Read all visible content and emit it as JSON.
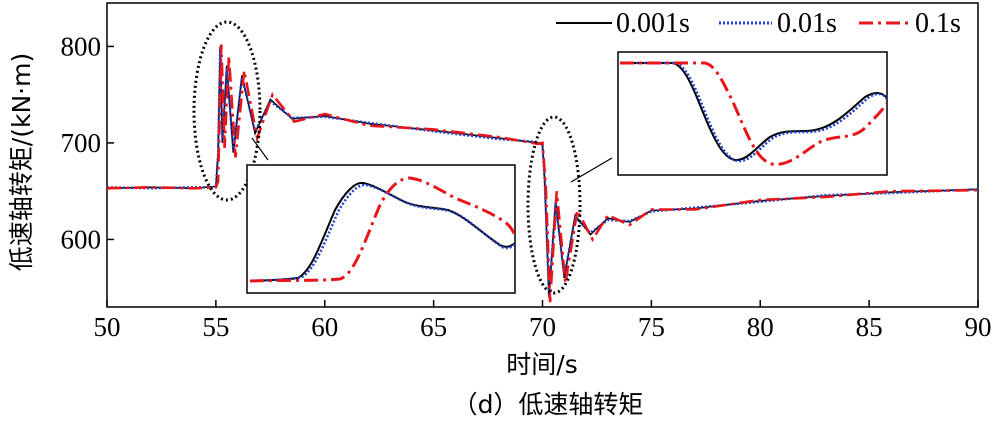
{
  "chart_data": {
    "type": "line",
    "title": "",
    "caption": "（d）低速轴转矩",
    "xlabel": "时间/s",
    "ylabel": "低速轴转矩/(kN·m)",
    "xlim": [
      50,
      90
    ],
    "ylim": [
      530,
      845
    ],
    "xticks": [
      50,
      55,
      60,
      65,
      70,
      75,
      80,
      85,
      90
    ],
    "yticks": [
      600,
      700,
      800
    ],
    "grid": false,
    "legend_position": "top-right",
    "series": [
      {
        "name": "0.001s",
        "color": "#000000",
        "style": "solid",
        "x": [
          50,
          52,
          54,
          55,
          55.1,
          55.2,
          55.3,
          55.5,
          55.8,
          56.2,
          56.8,
          57.5,
          58.5,
          60,
          62,
          65,
          68,
          69.8,
          70,
          70.1,
          70.3,
          70.6,
          71,
          71.5,
          72.2,
          73,
          74,
          75,
          77,
          80,
          83,
          86,
          90
        ],
        "y": [
          653,
          654,
          653,
          655,
          690,
          800,
          700,
          780,
          690,
          770,
          710,
          745,
          725,
          728,
          720,
          713,
          705,
          700,
          698,
          660,
          540,
          640,
          560,
          625,
          605,
          622,
          618,
          630,
          632,
          640,
          645,
          649,
          652
        ]
      },
      {
        "name": "0.01s",
        "color": "#1f3fcc",
        "style": "dotted",
        "x": [
          50,
          52,
          54,
          55,
          55.1,
          55.2,
          55.3,
          55.5,
          55.8,
          56.2,
          56.8,
          57.5,
          58.5,
          60,
          62,
          65,
          68,
          69.8,
          70,
          70.1,
          70.3,
          70.6,
          71,
          71.5,
          72.2,
          73,
          74,
          75,
          77,
          80,
          83,
          86,
          90
        ],
        "y": [
          654,
          653,
          654,
          654,
          688,
          798,
          702,
          778,
          692,
          768,
          712,
          743,
          726,
          727,
          721,
          712,
          704,
          701,
          697,
          662,
          542,
          638,
          562,
          623,
          607,
          620,
          619,
          629,
          633,
          639,
          646,
          648,
          652
        ]
      },
      {
        "name": "0.1s",
        "color": "#e8161b",
        "style": "dashdot",
        "x": [
          50,
          52,
          54,
          55,
          55.1,
          55.25,
          55.4,
          55.6,
          55.9,
          56.3,
          56.9,
          57.6,
          58.6,
          60,
          62,
          65,
          68,
          69.8,
          70,
          70.15,
          70.35,
          70.65,
          71.05,
          71.6,
          72.3,
          73,
          74,
          75,
          77,
          80,
          83,
          86,
          90
        ],
        "y": [
          653,
          654,
          653,
          654,
          660,
          802,
          695,
          790,
          685,
          775,
          705,
          750,
          722,
          730,
          718,
          714,
          706,
          699,
          700,
          655,
          535,
          650,
          555,
          630,
          600,
          625,
          615,
          631,
          631,
          641,
          644,
          650,
          651
        ]
      }
    ],
    "annotations": [
      {
        "type": "ellipse",
        "x_center": 55.2,
        "y_center": 727,
        "note": "zoom region 1"
      },
      {
        "type": "ellipse",
        "x_center": 70.2,
        "y_center": 620,
        "note": "zoom region 2"
      }
    ]
  }
}
